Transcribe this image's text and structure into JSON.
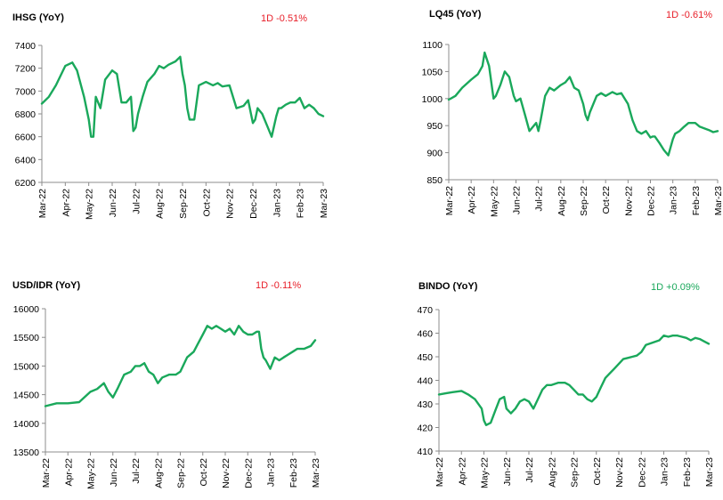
{
  "colors": {
    "line": "#1aa85b",
    "negative": "#e8202a",
    "positive": "#1aa85b",
    "axis": "#8c8c8c"
  },
  "chart_data": [
    {
      "type": "line",
      "title": "IHSG (YoY)",
      "change": "1D -0.51%",
      "change_sign": "negative",
      "xlabel": "",
      "ylabel": "",
      "ylim": [
        6200,
        7400
      ],
      "yticks": [
        6200,
        6400,
        6600,
        6800,
        7000,
        7200,
        7400
      ],
      "categories": [
        "Mar-22",
        "Apr-22",
        "May-22",
        "Jun-22",
        "Jul-22",
        "Aug-22",
        "Sep-22",
        "Oct-22",
        "Nov-22",
        "Dec-22",
        "Jan-23",
        "Feb-23",
        "Mar-23"
      ],
      "x": [
        0,
        0.3,
        0.6,
        1,
        1.3,
        1.5,
        1.8,
        2,
        2.1,
        2.2,
        2.3,
        2.5,
        2.7,
        3,
        3.2,
        3.4,
        3.6,
        3.8,
        3.9,
        4,
        4.1,
        4.3,
        4.5,
        4.8,
        5,
        5.2,
        5.4,
        5.7,
        5.9,
        6,
        6.1,
        6.2,
        6.3,
        6.5,
        6.7,
        7,
        7.3,
        7.5,
        7.7,
        8,
        8.3,
        8.6,
        8.8,
        9,
        9.1,
        9.2,
        9.4,
        9.6,
        9.8,
        10,
        10.1,
        10.2,
        10.4,
        10.6,
        10.8,
        11,
        11.2,
        11.4,
        11.6,
        11.8,
        12
      ],
      "values": [
        6890,
        6950,
        7050,
        7220,
        7250,
        7180,
        6950,
        6750,
        6600,
        6600,
        6950,
        6850,
        7100,
        7180,
        7150,
        6900,
        6900,
        6950,
        6650,
        6680,
        6800,
        6950,
        7080,
        7150,
        7220,
        7200,
        7230,
        7260,
        7300,
        7150,
        7050,
        6850,
        6750,
        6750,
        7050,
        7080,
        7050,
        7070,
        7040,
        7050,
        6850,
        6870,
        6920,
        6720,
        6750,
        6850,
        6800,
        6700,
        6600,
        6780,
        6850,
        6850,
        6880,
        6900,
        6900,
        6940,
        6850,
        6880,
        6850,
        6800,
        6780
      ]
    },
    {
      "type": "line",
      "title": "LQ45 (YoY)",
      "change": "1D -0.61%",
      "change_sign": "negative",
      "xlabel": "",
      "ylabel": "",
      "ylim": [
        850,
        1100
      ],
      "yticks": [
        850,
        900,
        950,
        1000,
        1050,
        1100
      ],
      "categories": [
        "Mar-22",
        "Apr-22",
        "May-22",
        "Jun-22",
        "Jul-22",
        "Aug-22",
        "Sep-22",
        "Oct-22",
        "Nov-22",
        "Dec-22",
        "Jan-23",
        "Feb-23",
        "Mar-23"
      ],
      "x": [
        0,
        0.3,
        0.6,
        1,
        1.3,
        1.5,
        1.6,
        1.8,
        2,
        2.1,
        2.3,
        2.5,
        2.7,
        2.9,
        3,
        3.2,
        3.4,
        3.6,
        3.8,
        3.9,
        4,
        4.1,
        4.3,
        4.5,
        4.7,
        5,
        5.2,
        5.4,
        5.6,
        5.8,
        6,
        6.1,
        6.2,
        6.3,
        6.6,
        6.8,
        7,
        7.3,
        7.5,
        7.7,
        8,
        8.2,
        8.4,
        8.6,
        8.8,
        9,
        9.1,
        9.2,
        9.4,
        9.6,
        9.8,
        10,
        10.1,
        10.3,
        10.5,
        10.7,
        11,
        11.2,
        11.4,
        11.6,
        11.8,
        12
      ],
      "values": [
        998,
        1005,
        1020,
        1035,
        1045,
        1060,
        1085,
        1060,
        1000,
        1005,
        1025,
        1050,
        1040,
        1005,
        995,
        1000,
        970,
        940,
        950,
        955,
        940,
        960,
        1005,
        1020,
        1015,
        1025,
        1030,
        1040,
        1020,
        1015,
        990,
        970,
        960,
        975,
        1005,
        1010,
        1005,
        1012,
        1008,
        1010,
        990,
        960,
        940,
        935,
        940,
        928,
        930,
        930,
        918,
        905,
        895,
        925,
        935,
        940,
        948,
        955,
        955,
        948,
        945,
        942,
        938,
        940
      ]
    },
    {
      "type": "line",
      "title": "USD/IDR (YoY)",
      "change": "1D -0.11%",
      "change_sign": "negative",
      "xlabel": "",
      "ylabel": "",
      "ylim": [
        13500,
        16000
      ],
      "yticks": [
        13500,
        14000,
        14500,
        15000,
        15500,
        16000
      ],
      "categories": [
        "Mar-22",
        "Apr-22",
        "May-22",
        "Jun-22",
        "Jul-22",
        "Aug-22",
        "Sep-22",
        "Oct-22",
        "Nov-22",
        "Dec-22",
        "Jan-23",
        "Feb-23",
        "Mar-23"
      ],
      "x": [
        0,
        0.5,
        1,
        1.5,
        2,
        2.3,
        2.6,
        2.8,
        3,
        3.2,
        3.5,
        3.8,
        4,
        4.2,
        4.4,
        4.6,
        4.8,
        5,
        5.2,
        5.5,
        5.8,
        6,
        6.3,
        6.6,
        6.8,
        7,
        7.2,
        7.4,
        7.6,
        7.8,
        8,
        8.2,
        8.4,
        8.6,
        8.8,
        9,
        9.2,
        9.4,
        9.5,
        9.6,
        9.7,
        9.8,
        10,
        10.2,
        10.4,
        10.6,
        10.8,
        11,
        11.2,
        11.5,
        11.8,
        12
      ],
      "values": [
        14300,
        14350,
        14350,
        14370,
        14550,
        14600,
        14700,
        14550,
        14450,
        14600,
        14850,
        14900,
        15000,
        15000,
        15050,
        14900,
        14850,
        14700,
        14800,
        14850,
        14850,
        14900,
        15150,
        15250,
        15400,
        15550,
        15700,
        15650,
        15700,
        15650,
        15600,
        15650,
        15550,
        15700,
        15600,
        15550,
        15550,
        15600,
        15600,
        15300,
        15150,
        15100,
        14950,
        15150,
        15100,
        15150,
        15200,
        15250,
        15300,
        15300,
        15350,
        15450
      ]
    },
    {
      "type": "line",
      "title": "BINDO (YoY)",
      "change": "1D +0.09%",
      "change_sign": "positive",
      "xlabel": "",
      "ylabel": "",
      "ylim": [
        410,
        470
      ],
      "yticks": [
        410,
        420,
        430,
        440,
        450,
        460,
        470
      ],
      "categories": [
        "Mar-22",
        "Apr-22",
        "May-22",
        "Jun-22",
        "Jul-22",
        "Aug-22",
        "Sep-22",
        "Oct-22",
        "Nov-22",
        "Dec-22",
        "Jan-23",
        "Feb-23",
        "Mar-23"
      ],
      "x": [
        0,
        0.3,
        0.6,
        1,
        1.3,
        1.6,
        1.9,
        2,
        2.1,
        2.3,
        2.5,
        2.7,
        2.9,
        3,
        3.2,
        3.4,
        3.6,
        3.8,
        4,
        4.2,
        4.4,
        4.6,
        4.8,
        5,
        5.3,
        5.6,
        5.8,
        6,
        6.2,
        6.4,
        6.6,
        6.8,
        7,
        7.2,
        7.4,
        7.6,
        7.8,
        8,
        8.2,
        8.4,
        8.6,
        8.8,
        9,
        9.2,
        9.5,
        9.8,
        10,
        10.2,
        10.4,
        10.6,
        10.8,
        11,
        11.2,
        11.4,
        11.6,
        11.8,
        12
      ],
      "values": [
        434,
        434.5,
        435,
        435.5,
        434,
        432,
        428,
        423,
        421,
        422,
        427,
        432,
        433,
        428,
        426,
        428,
        431,
        432,
        431,
        428,
        432,
        436,
        438,
        438,
        439,
        439,
        438,
        436,
        434,
        434,
        432,
        431,
        433,
        437,
        441,
        443,
        445,
        447,
        449,
        449.5,
        450,
        450.5,
        452,
        455,
        456,
        457,
        459,
        458.5,
        459,
        459,
        458.5,
        458,
        457,
        458,
        457.5,
        456.5,
        455.5
      ]
    }
  ]
}
